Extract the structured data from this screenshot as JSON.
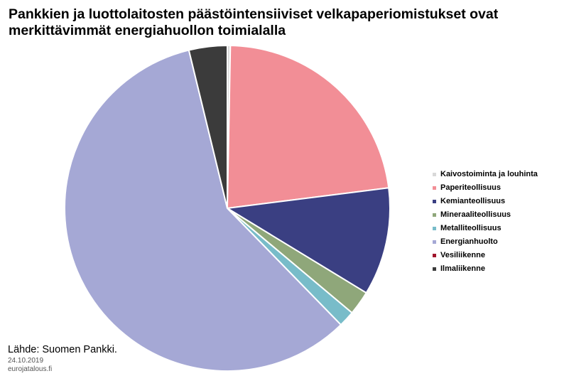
{
  "title_line1": "Pankkien ja luottolaitosten päästöintensiiviset velkapaperiomistukset ovat",
  "title_line2": "merkittävimmät energiahuollon toimialalla",
  "source": "Lähde: Suomen Pankki.",
  "date": "24.10.2019",
  "site": "eurojatalous.fi",
  "chart_data": {
    "type": "pie",
    "title": "Pankkien ja luottolaitosten päästöintensiiviset velkapaperiomistukset ovat merkittävimmät energiahuollon toimialalla",
    "legend_position": "right",
    "series": [
      {
        "name": "Kaivostoiminta ja louhinta",
        "value": 0.3,
        "color": "#d9d9d9"
      },
      {
        "name": "Paperiteollisuus",
        "value": 22.7,
        "color": "#f28e96"
      },
      {
        "name": "Kemianteollisuus",
        "value": 10.7,
        "color": "#3a3f82"
      },
      {
        "name": "Mineraaliteollisuus",
        "value": 2.4,
        "color": "#8fa77a"
      },
      {
        "name": "Metalliteollisuus",
        "value": 1.6,
        "color": "#78bcc9"
      },
      {
        "name": "Energianhuolto",
        "value": 58.5,
        "color": "#a5a8d5"
      },
      {
        "name": "Vesiliikenne",
        "value": 0.0,
        "color": "#a0142c"
      },
      {
        "name": "Ilmaliikenne",
        "value": 3.8,
        "color": "#3b3b3b"
      }
    ]
  }
}
